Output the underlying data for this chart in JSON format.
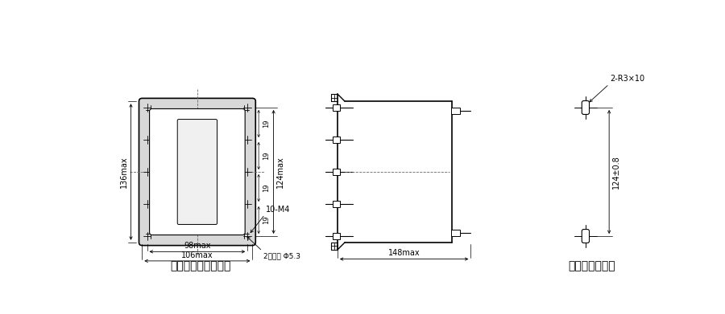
{
  "bg_color": "#ffffff",
  "title1": "板前接线外形尺寸图",
  "title2": "安装开孔尺寸图",
  "dim_136": "136max",
  "dim_124r": "124max",
  "dim_98": "98max",
  "dim_106": "106max",
  "dim_148": "148max",
  "dim_10M4": "10-M4",
  "dim_19": "19",
  "dim_hole": "2安装孔 Φ5.3",
  "dim_2R3x10": "2-R3×10",
  "dim_124pm08": "124±0.8"
}
